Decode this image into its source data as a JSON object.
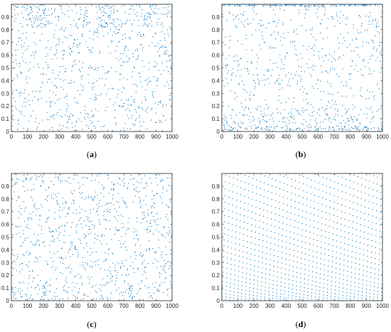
{
  "colors": {
    "marker": "#0072BD",
    "axis": "#262626",
    "background": "#ffffff"
  },
  "chart_data": [
    {
      "id": "a",
      "label": "(a)",
      "type": "scatter",
      "xlim": [
        0,
        1000
      ],
      "ylim": [
        0,
        1
      ],
      "xticks": [
        0,
        100,
        200,
        300,
        400,
        500,
        600,
        700,
        800,
        900,
        1000
      ],
      "yticks": [
        0,
        0.1,
        0.2,
        0.3,
        0.4,
        0.5,
        0.6,
        0.7,
        0.8,
        0.9
      ],
      "grid": false,
      "n_points": 1000,
      "pattern": "chaotic map; points cluster in vertical runs near y=1 around x=120-210, 450-470, 540-640, 830-890"
    },
    {
      "id": "b",
      "label": "(b)",
      "type": "scatter",
      "xlim": [
        0,
        1000
      ],
      "ylim": [
        0,
        1
      ],
      "xticks": [
        0,
        100,
        200,
        300,
        400,
        500,
        600,
        700,
        800,
        900,
        1000
      ],
      "yticks": [
        0,
        0.1,
        0.2,
        0.3,
        0.4,
        0.5,
        0.6,
        0.7,
        0.8,
        0.9
      ],
      "grid": false,
      "n_points": 1000,
      "pattern": "chaotic map; dense bands near y=1 and y=0"
    },
    {
      "id": "c",
      "label": "(c)",
      "type": "scatter",
      "xlim": [
        0,
        1000
      ],
      "ylim": [
        0,
        1
      ],
      "xticks": [
        0,
        100,
        200,
        300,
        400,
        500,
        600,
        700,
        800,
        900,
        1000
      ],
      "yticks": [
        0,
        0.1,
        0.2,
        0.3,
        0.4,
        0.5,
        0.6,
        0.7,
        0.8,
        0.9
      ],
      "grid": false,
      "n_points": 1000,
      "pattern": "chaotic map; roughly uniform with short vertical runs near y=0 around x=20, 200, 740"
    },
    {
      "id": "d",
      "label": "(d)",
      "type": "scatter",
      "xlim": [
        0,
        1000
      ],
      "ylim": [
        0,
        1
      ],
      "xticks": [
        0,
        100,
        200,
        300,
        400,
        500,
        600,
        700,
        800,
        900,
        1000
      ],
      "yticks": [
        0,
        0.1,
        0.2,
        0.3,
        0.4,
        0.5,
        0.6,
        0.7,
        0.8,
        0.9
      ],
      "grid": false,
      "n_points": 1000,
      "pattern": "quasi-periodic lattice; points lie on parallel diagonal lines, denser toward y=0"
    }
  ]
}
